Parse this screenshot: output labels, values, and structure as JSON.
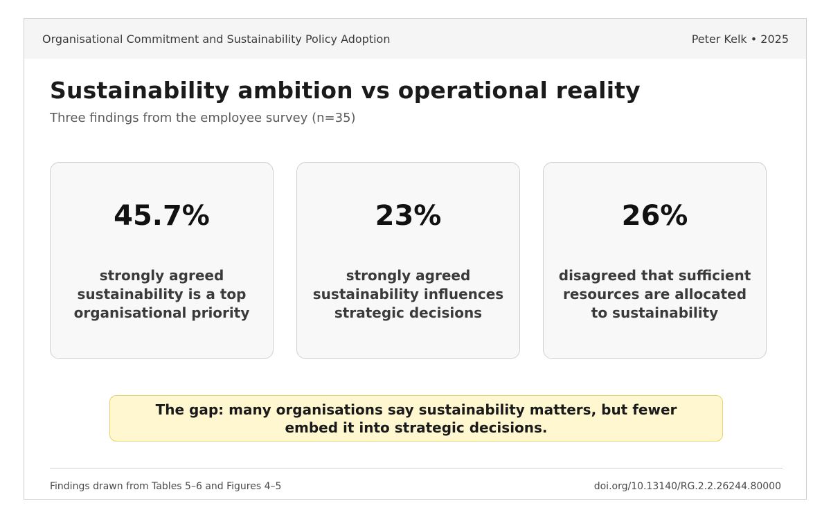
{
  "header": {
    "left_text": "Organisational Commitment and Sustainability Policy Adoption",
    "right_text": "Peter Kelk • 2025"
  },
  "main": {
    "title": "Sustainability ambition vs operational reality",
    "subtitle": "Three findings from the employee survey (n=35)"
  },
  "cards": [
    {
      "value": "45.7%",
      "text": "strongly agreed sustainability is a top organisational priority"
    },
    {
      "value": "23%",
      "text": "strongly agreed sustainability influences strategic decisions"
    },
    {
      "value": "26%",
      "text": "disagreed that sufficient resources are allocated to sustainability"
    }
  ],
  "callout": {
    "text": "The gap: many organisations say sustainability matters, but fewer embed it into strategic decisions."
  },
  "footer": {
    "left_text": "Findings drawn from Tables 5–6 and Figures 4–5",
    "right_text": "doi.org/10.13140/RG.2.2.26244.80000"
  },
  "colors": {
    "header_bg": "#f5f5f5",
    "card_bg": "#f8f8f8",
    "callout_bg": "#fff7cf",
    "callout_border": "#e6d26a"
  }
}
